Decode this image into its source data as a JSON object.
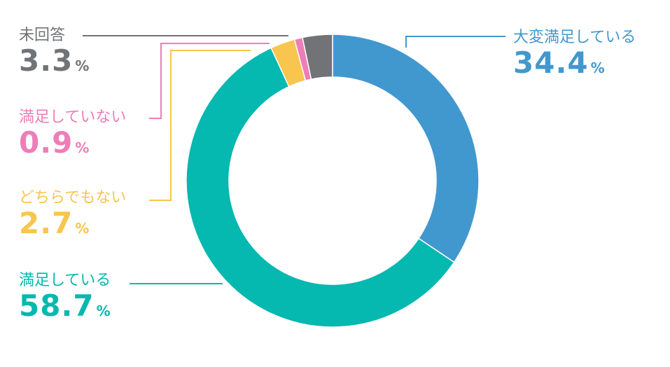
{
  "chart_data": {
    "type": "pie",
    "variant": "donut",
    "categories": [
      "大変満足している",
      "満足している",
      "どちらでもない",
      "満足していない",
      "未回答"
    ],
    "values": [
      34.4,
      58.7,
      2.7,
      0.9,
      3.3
    ],
    "value_labels": [
      "34.4",
      "58.7",
      "2.7",
      "0.9",
      "3.3"
    ],
    "unit": "%",
    "colors": [
      "#4198cf",
      "#05b8b0",
      "#f8c54f",
      "#ed7eb7",
      "#717377"
    ],
    "legend": "callout labels around the donut",
    "start": "12 o'clock, clockwise"
  }
}
